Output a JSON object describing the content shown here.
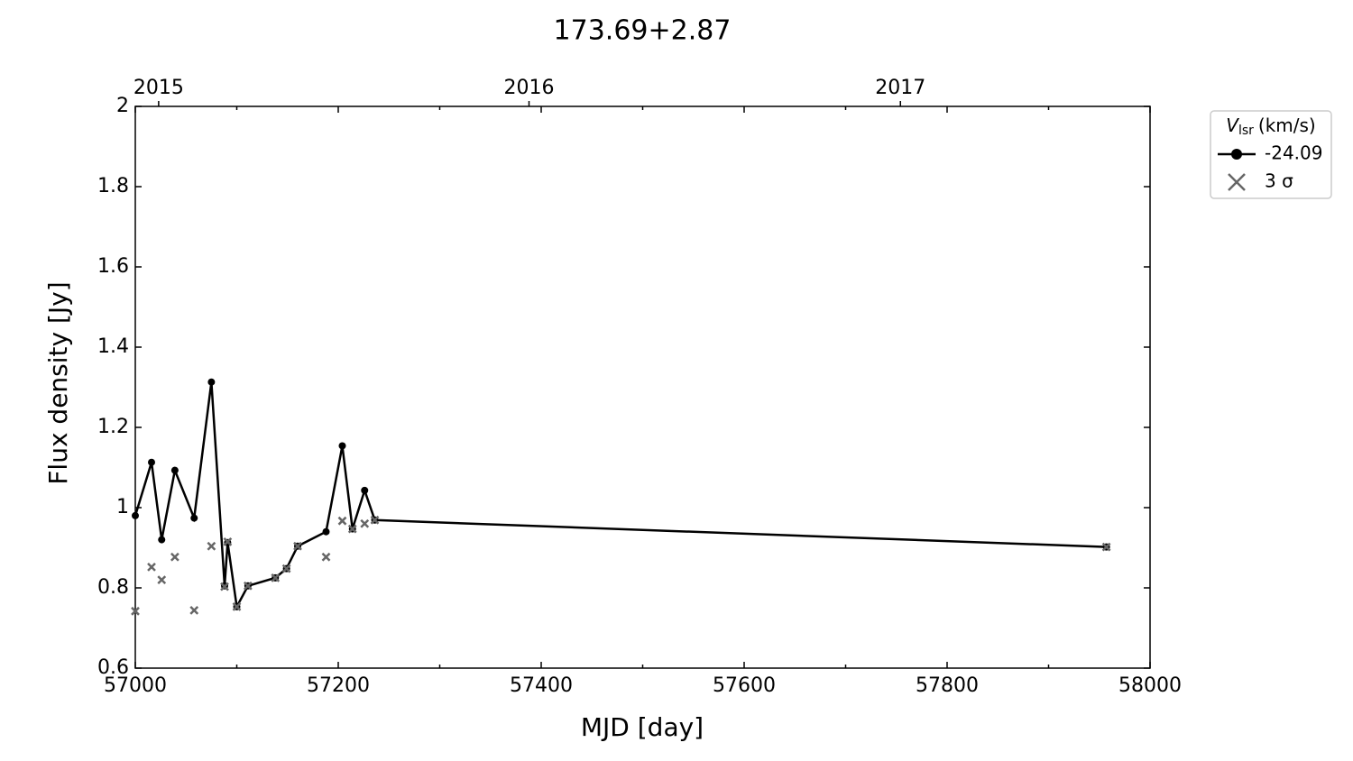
{
  "chart_data": {
    "type": "line",
    "title": "173.69+2.87",
    "x_label": "MJD [day]",
    "y_label": "Flux density [Jy]",
    "xlim": [
      57000,
      58000
    ],
    "xticks": [
      57000,
      57200,
      57400,
      57600,
      57800,
      58000
    ],
    "xminorticks": [
      57100,
      57300,
      57500,
      57700,
      57900
    ],
    "ylim": [
      0.6,
      2.0
    ],
    "yticks": [
      0.6,
      0.8,
      1.0,
      1.2,
      1.4,
      1.6,
      1.8,
      2.0
    ],
    "x2ticks": [
      {
        "value": 57023,
        "label": "2015"
      },
      {
        "value": 57388,
        "label": "2016"
      },
      {
        "value": 57754,
        "label": "2017"
      }
    ],
    "legend_title": {
      "symbol": "V",
      "subscript": "lsr",
      "unit": "(km/s)"
    },
    "legend": "upper right outside",
    "x": [
      57000,
      57016,
      57026,
      57039,
      57058,
      57075,
      57088,
      57091,
      57100,
      57111,
      57138,
      57149,
      57160,
      57188,
      57204,
      57214,
      57226,
      57236,
      57957
    ],
    "series": [
      {
        "name": "-24.09",
        "color": "#000000",
        "marker": "circle",
        "values": [
          0.98,
          1.113,
          0.92,
          1.093,
          0.974,
          1.313,
          0.805,
          0.913,
          0.753,
          0.805,
          0.825,
          0.848,
          0.904,
          0.94,
          1.154,
          0.947,
          1.043,
          0.969,
          0.902
        ]
      },
      {
        "name": "3 σ",
        "color": "#666666",
        "marker": "x",
        "values": [
          0.742,
          0.852,
          0.82,
          0.877,
          0.744,
          0.904,
          0.803,
          0.915,
          0.753,
          0.805,
          0.825,
          0.848,
          0.904,
          0.877,
          0.967,
          0.947,
          0.96,
          0.969,
          0.902
        ]
      }
    ]
  }
}
